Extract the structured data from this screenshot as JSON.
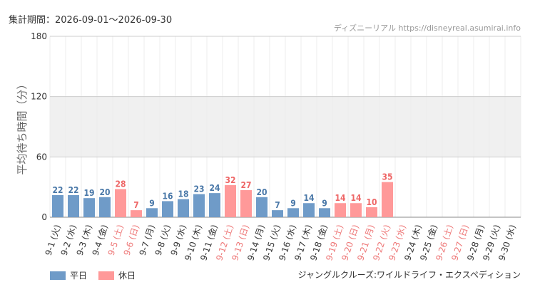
{
  "header": {
    "period_label": "集計期間：2026-09-01～2026-09-30",
    "source_label": "ディズニーリアル https://disneyreal.asumirai.info"
  },
  "legend": {
    "weekday_label": "平日",
    "holiday_label": "休日"
  },
  "footer": {
    "attraction_name": "ジャングルクルーズ:ワイルドライフ・エクスペディション"
  },
  "colors": {
    "weekday": "#6f9bc8",
    "holiday": "#ff9999",
    "weekday_text": "#4a78a8",
    "holiday_text": "#ee6666"
  },
  "chart_data": {
    "type": "bar",
    "ylabel": "平均待ち時間（分）",
    "ylim": [
      0,
      180
    ],
    "yticks": [
      0,
      60,
      120,
      180
    ],
    "shaded_band": [
      60,
      120
    ],
    "grid": true,
    "categories": [
      "9-1 (火)",
      "9-2 (水)",
      "9-3 (木)",
      "9-4 (金)",
      "9-5 (土)",
      "9-6 (日)",
      "9-7 (月)",
      "9-8 (火)",
      "9-9 (水)",
      "9-10 (木)",
      "9-11 (金)",
      "9-12 (土)",
      "9-13 (日)",
      "9-14 (月)",
      "9-15 (火)",
      "9-16 (水)",
      "9-17 (木)",
      "9-18 (金)",
      "9-19 (土)",
      "9-20 (日)",
      "9-21 (月)",
      "9-22 (火)",
      "9-23 (水)",
      "9-24 (木)",
      "9-25 (金)",
      "9-26 (土)",
      "9-27 (日)",
      "9-28 (月)",
      "9-29 (火)",
      "9-30 (水)"
    ],
    "values": [
      22,
      22,
      19,
      20,
      28,
      7,
      9,
      16,
      18,
      23,
      24,
      32,
      27,
      20,
      7,
      9,
      14,
      9,
      14,
      14,
      10,
      35,
      null,
      null,
      null,
      null,
      null,
      null,
      null,
      null
    ],
    "day_type": [
      "weekday",
      "weekday",
      "weekday",
      "weekday",
      "holiday",
      "holiday",
      "weekday",
      "weekday",
      "weekday",
      "weekday",
      "weekday",
      "holiday",
      "holiday",
      "weekday",
      "weekday",
      "weekday",
      "weekday",
      "weekday",
      "holiday",
      "holiday",
      "holiday",
      "holiday",
      "holiday",
      "weekday",
      "weekday",
      "holiday",
      "holiday",
      "weekday",
      "weekday",
      "weekday"
    ]
  }
}
